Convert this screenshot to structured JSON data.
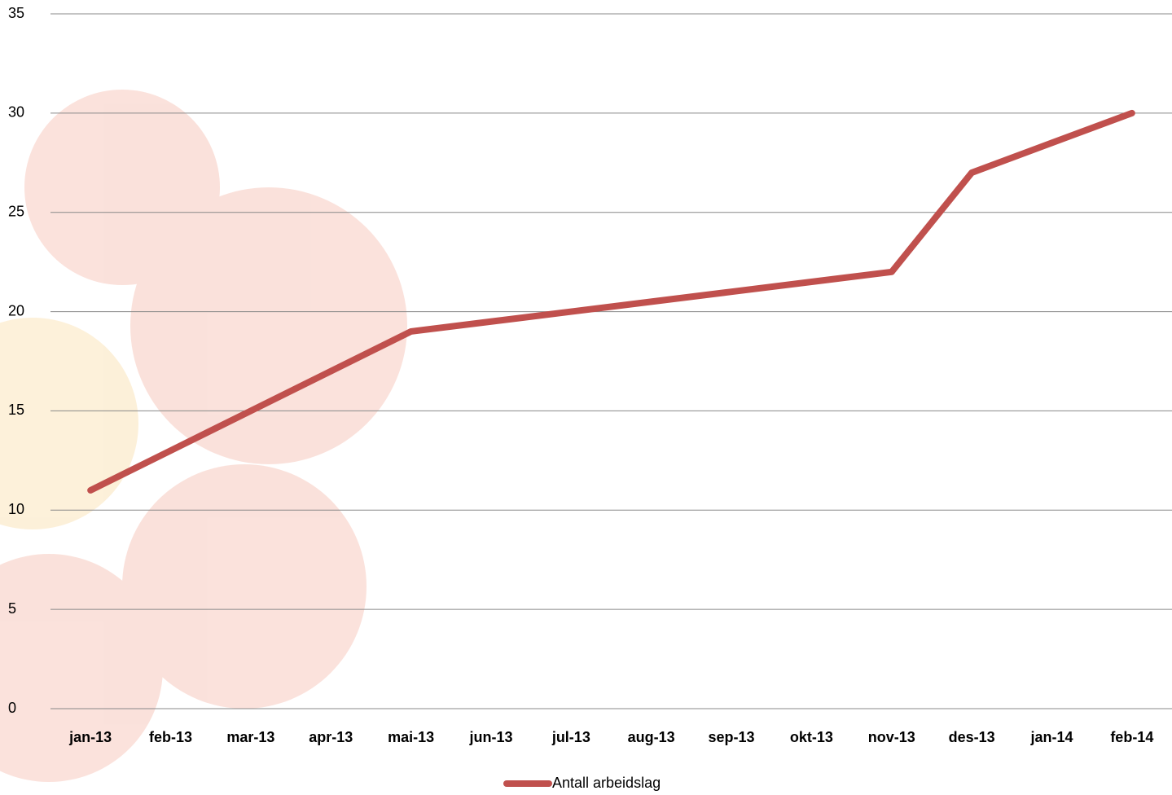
{
  "chart_data": {
    "type": "line",
    "categories": [
      "jan-13",
      "feb-13",
      "mar-13",
      "apr-13",
      "mai-13",
      "jun-13",
      "jul-13",
      "aug-13",
      "sep-13",
      "okt-13",
      "nov-13",
      "des-13",
      "jan-14",
      "feb-14"
    ],
    "series": [
      {
        "name": "Antall arbeidslag",
        "color": "#c0504d",
        "values": [
          11,
          13,
          15,
          17,
          19,
          19.5,
          20,
          20.5,
          21,
          21.5,
          22,
          27,
          28.5,
          30
        ]
      }
    ],
    "ylim": [
      0,
      35
    ],
    "yticks": [
      0,
      5,
      10,
      15,
      20,
      25,
      30,
      35
    ],
    "grid": true,
    "legend": "bottom"
  }
}
